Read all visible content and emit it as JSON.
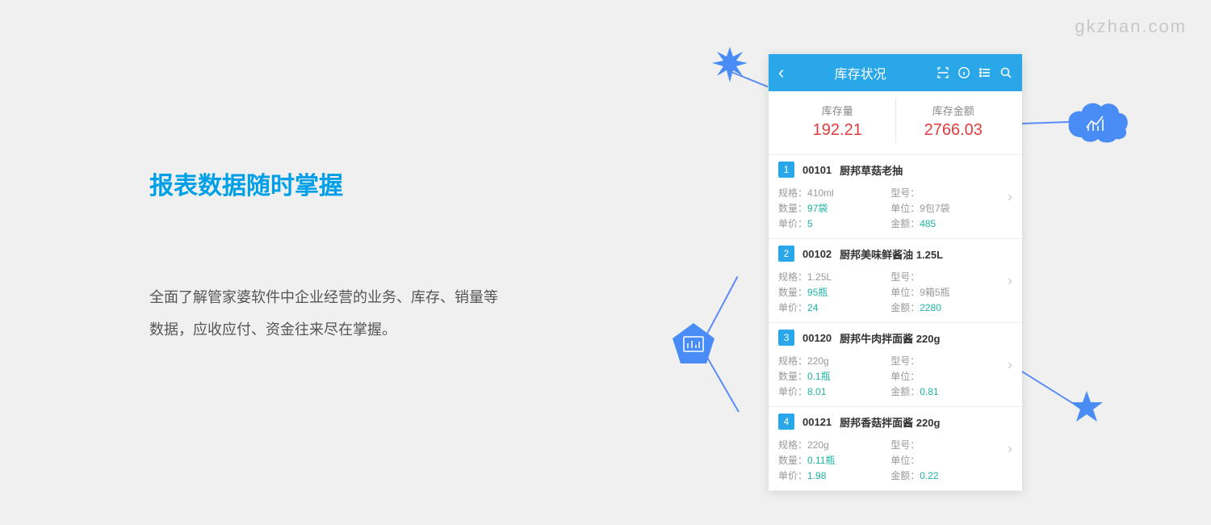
{
  "watermark": "gkzhan.com",
  "heading": "报表数据随时掌握",
  "description": "全面了解管家婆软件中企业经营的业务、库存、销量等数据，应收应付、资金往来尽在掌握。",
  "phone": {
    "title": "库存状况",
    "summary": {
      "qty_label": "库存量",
      "qty_value": "192.21",
      "amt_label": "库存金额",
      "amt_value": "2766.03"
    },
    "items": [
      {
        "idx": "1",
        "code": "00101",
        "name": "厨邦草菇老抽",
        "spec_label": "规格：",
        "spec": "410ml",
        "model_label": "型号：",
        "model": "",
        "qty_label": "数量：",
        "qty": "97袋",
        "unit_label": "单位：",
        "unit": "9包7袋",
        "price_label": "单价：",
        "price": "5",
        "amount_label": "金额：",
        "amount": "485"
      },
      {
        "idx": "2",
        "code": "00102",
        "name": "厨邦美味鲜酱油 1.25L",
        "spec_label": "规格：",
        "spec": "1.25L",
        "model_label": "型号：",
        "model": "",
        "qty_label": "数量：",
        "qty": "95瓶",
        "unit_label": "单位：",
        "unit": "9箱5瓶",
        "price_label": "单价：",
        "price": "24",
        "amount_label": "金额：",
        "amount": "2280"
      },
      {
        "idx": "3",
        "code": "00120",
        "name": "厨邦牛肉拌面酱 220g",
        "spec_label": "规格：",
        "spec": "220g",
        "model_label": "型号：",
        "model": "",
        "qty_label": "数量：",
        "qty": "0.1瓶",
        "unit_label": "单位：",
        "unit": "",
        "price_label": "单价：",
        "price": "8.01",
        "amount_label": "金额：",
        "amount": "0.81"
      },
      {
        "idx": "4",
        "code": "00121",
        "name": "厨邦香菇拌面酱 220g",
        "spec_label": "规格：",
        "spec": "220g",
        "model_label": "型号：",
        "model": "",
        "qty_label": "数量：",
        "qty": "0.11瓶",
        "unit_label": "单位：",
        "unit": "",
        "price_label": "单价：",
        "price": "1.98",
        "amount_label": "金额：",
        "amount": "0.22"
      }
    ]
  },
  "colors": {
    "accent": "#29a7e8",
    "heading": "#00a0e9",
    "value_red": "#e13c3c",
    "value_teal": "#1db4a4",
    "connector": "#5b8bf5",
    "shape_fill": "#4a8cf5"
  }
}
